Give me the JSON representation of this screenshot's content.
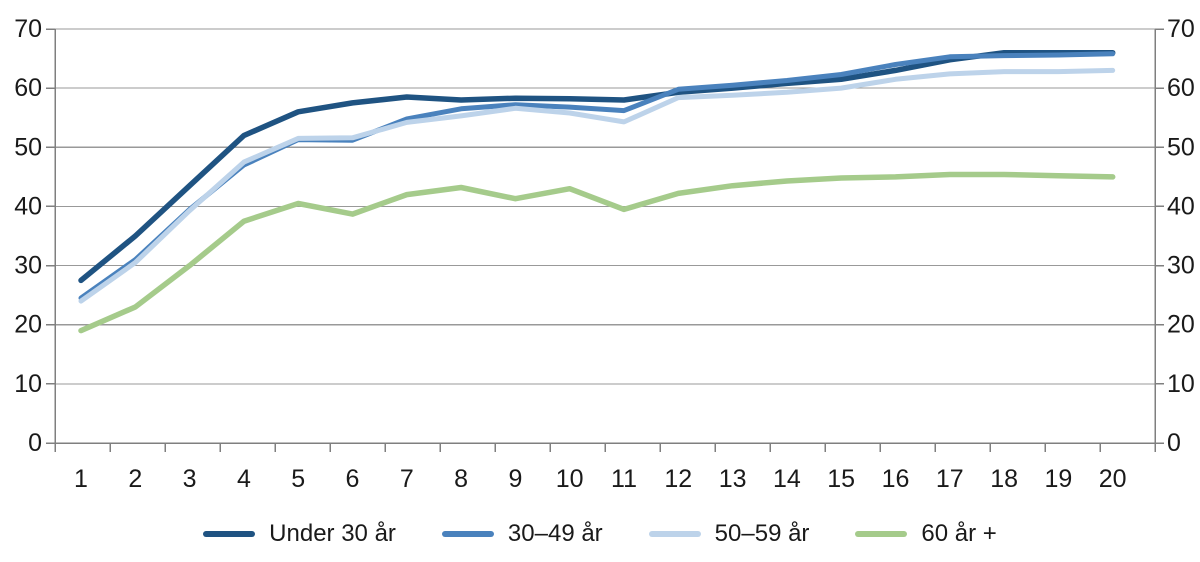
{
  "chart_data": {
    "type": "line",
    "title": "",
    "xlabel": "",
    "ylabel": "",
    "x": [
      1,
      2,
      3,
      4,
      5,
      6,
      7,
      8,
      9,
      10,
      11,
      12,
      13,
      14,
      15,
      16,
      17,
      18,
      19,
      20
    ],
    "xtick_labels": [
      "1",
      "2",
      "3",
      "4",
      "5",
      "6",
      "7",
      "8",
      "9",
      "10",
      "11",
      "12",
      "13",
      "14",
      "15",
      "16",
      "17",
      "18",
      "19",
      "20"
    ],
    "yticks": [
      0,
      10,
      20,
      30,
      40,
      50,
      60,
      70
    ],
    "ylim": [
      0,
      70
    ],
    "grid": "horizontal",
    "y_axis_sides": "both",
    "legend_position": "bottom",
    "series": [
      {
        "name": "Under 30 år",
        "color": "#1f5382",
        "stroke_width": 5.5,
        "values": [
          27.5,
          35,
          43.5,
          52,
          56,
          57.5,
          58.5,
          58,
          58.3,
          58.2,
          58,
          59.3,
          60,
          60.8,
          61.5,
          63,
          64.8,
          66,
          66,
          66
        ]
      },
      {
        "name": "30–49 år",
        "color": "#4a82bd",
        "stroke_width": 5,
        "values": [
          24.5,
          31,
          39.5,
          47,
          51.3,
          51.2,
          54.8,
          56.5,
          57.2,
          56.8,
          56.2,
          59.8,
          60.5,
          61.3,
          62.3,
          64,
          65.3,
          65.5,
          65.6,
          65.8
        ]
      },
      {
        "name": "50–59 år",
        "color": "#bdd3ea",
        "stroke_width": 5,
        "values": [
          24,
          30.5,
          39.3,
          47.5,
          51.5,
          51.6,
          54.2,
          55.3,
          56.6,
          55.8,
          54.3,
          58.4,
          58.8,
          59.3,
          60,
          61.5,
          62.4,
          62.8,
          62.8,
          63
        ]
      },
      {
        "name": "60 år +",
        "color": "#a5cb8b",
        "stroke_width": 5.5,
        "values": [
          19,
          23,
          30,
          37.5,
          40.5,
          38.7,
          42,
          43.2,
          41.3,
          43,
          39.5,
          42.2,
          43.5,
          44.3,
          44.8,
          45,
          45.4,
          45.4,
          45.2,
          45
        ]
      }
    ],
    "draw_order": [
      3,
      0,
      1,
      2
    ],
    "colors": {
      "background": "#ffffff",
      "gridline": "#999999",
      "axis": "#7f7f7f",
      "label": "#1a1a1a"
    }
  }
}
